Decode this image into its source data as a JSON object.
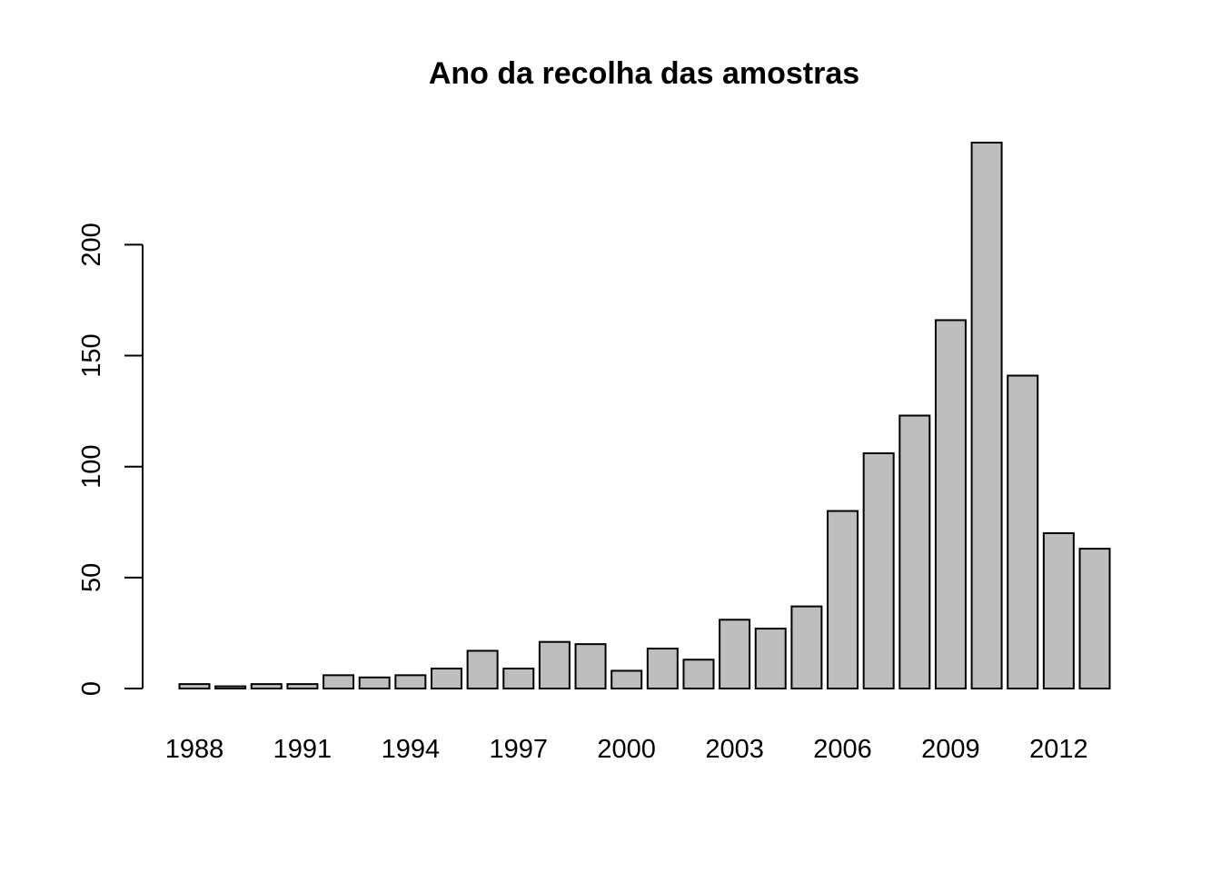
{
  "chart_data": {
    "type": "bar",
    "title": "Ano da recolha das amostras",
    "xlabel": "",
    "ylabel": "",
    "categories": [
      "1988",
      "1989",
      "1990",
      "1991",
      "1992",
      "1993",
      "1994",
      "1995",
      "1996",
      "1997",
      "1998",
      "1999",
      "2000",
      "2001",
      "2002",
      "2003",
      "2004",
      "2005",
      "2006",
      "2007",
      "2008",
      "2009",
      "2010",
      "2011",
      "2012",
      "2013"
    ],
    "values": [
      2,
      1,
      2,
      2,
      6,
      5,
      6,
      9,
      17,
      9,
      21,
      20,
      8,
      18,
      13,
      31,
      27,
      37,
      80,
      106,
      123,
      166,
      246,
      141,
      70,
      63
    ],
    "x_tick_labels": [
      "1988",
      "1991",
      "1994",
      "1997",
      "2000",
      "2003",
      "2006",
      "2009",
      "2012"
    ],
    "y_ticks": [
      0,
      50,
      100,
      150,
      200
    ],
    "ylim": [
      0,
      246
    ],
    "bar_color": "#bebebe",
    "grid": false,
    "legend": "none"
  }
}
